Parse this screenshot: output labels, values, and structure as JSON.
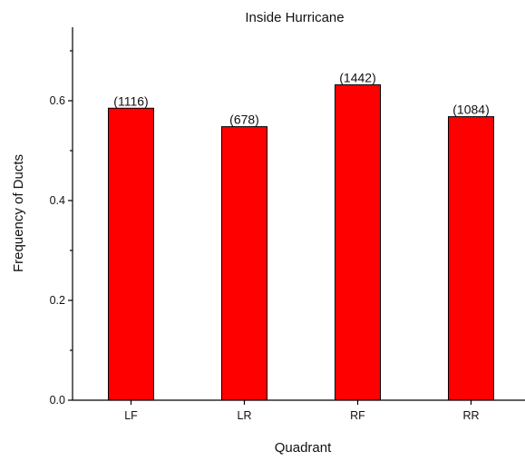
{
  "chart_data": {
    "type": "bar",
    "title": "Inside Hurricane",
    "xlabel": "Quadrant",
    "ylabel": "Frequency of Ducts",
    "categories": [
      "LF",
      "LR",
      "RF",
      "RR"
    ],
    "values": [
      0.585,
      0.548,
      0.632,
      0.568
    ],
    "data_labels": [
      "(1116)",
      "(678)",
      "(1442)",
      "(1084)"
    ],
    "ylim": [
      0,
      0.75
    ],
    "yticks": [
      0.0,
      0.2,
      0.4,
      0.6
    ],
    "ytick_labels": [
      "0.0",
      "0.2",
      "0.4",
      "0.6"
    ],
    "grid": false,
    "bar_color": "#ff0000"
  }
}
